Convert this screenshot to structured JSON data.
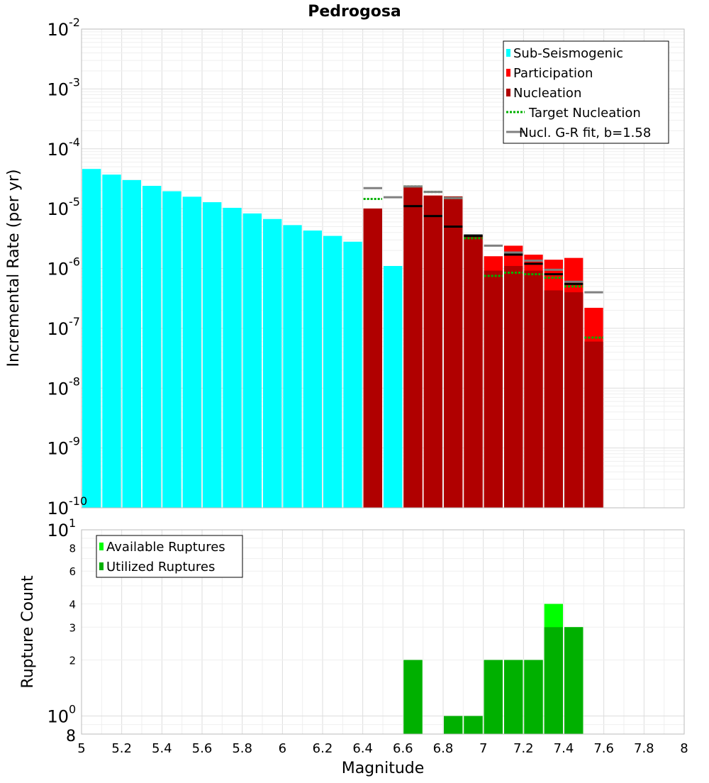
{
  "title": "Pedrogosa",
  "xlabel": "Magnitude",
  "chart_data": [
    {
      "type": "bar",
      "panel": "rates",
      "title": "Pedrogosa",
      "ylabel": "Incremental Rate (per yr)",
      "yscale": "log",
      "ylim": [
        1e-10,
        0.01
      ],
      "xlim": [
        5,
        8
      ],
      "grid": true,
      "legend_position": "top-right",
      "bin_width": 0.1,
      "x_ticks": [
        "5",
        "5.2",
        "5.4",
        "5.6",
        "5.8",
        "6",
        "6.2",
        "6.4",
        "6.6",
        "6.8",
        "7",
        "7.2",
        "7.4",
        "7.6",
        "7.8",
        "8"
      ],
      "y_ticks": [
        {
          "base": "10",
          "exp": "-2"
        },
        {
          "base": "10",
          "exp": "-3"
        },
        {
          "base": "10",
          "exp": "-4"
        },
        {
          "base": "10",
          "exp": "-5"
        },
        {
          "base": "10",
          "exp": "-6"
        },
        {
          "base": "10",
          "exp": "-7"
        },
        {
          "base": "10",
          "exp": "-8"
        },
        {
          "base": "10",
          "exp": "-9"
        },
        {
          "base": "10",
          "exp": "-10"
        }
      ],
      "legend": [
        {
          "label": "Sub-Seismogenic",
          "kind": "box",
          "color": "#00ffff"
        },
        {
          "label": "Participation",
          "kind": "box",
          "color": "#ff0000"
        },
        {
          "label": "Nucleation",
          "kind": "box",
          "color": "#b00000"
        },
        {
          "label": "Target Nucleation",
          "kind": "dotted",
          "color": "#00b000"
        },
        {
          "label": "Nucl. G-R fit, b=1.58",
          "kind": "line",
          "color": "#808080"
        }
      ],
      "series": [
        {
          "name": "Sub-Seismogenic",
          "color": "#00ffff",
          "style": "bar",
          "points": [
            [
              5.05,
              4.6e-05
            ],
            [
              5.15,
              3.7e-05
            ],
            [
              5.25,
              3e-05
            ],
            [
              5.35,
              2.4e-05
            ],
            [
              5.45,
              1.95e-05
            ],
            [
              5.55,
              1.58e-05
            ],
            [
              5.65,
              1.28e-05
            ],
            [
              5.75,
              1.03e-05
            ],
            [
              5.85,
              8.3e-06
            ],
            [
              5.95,
              6.7e-06
            ],
            [
              6.05,
              5.3e-06
            ],
            [
              6.15,
              4.3e-06
            ],
            [
              6.25,
              3.5e-06
            ],
            [
              6.35,
              2.8e-06
            ],
            [
              6.55,
              1.1e-06
            ]
          ]
        },
        {
          "name": "Participation",
          "color": "#ff0000",
          "style": "bar",
          "points": [
            [
              6.45,
              1e-05
            ],
            [
              6.65,
              2.3e-05
            ],
            [
              6.75,
              1.65e-05
            ],
            [
              6.85,
              1.6e-05
            ],
            [
              6.95,
              3.6e-06
            ],
            [
              7.05,
              1.6e-06
            ],
            [
              7.15,
              2.4e-06
            ],
            [
              7.25,
              1.7e-06
            ],
            [
              7.35,
              1.4e-06
            ],
            [
              7.45,
              1.5e-06
            ],
            [
              7.55,
              2.2e-07
            ]
          ]
        },
        {
          "name": "Nucleation",
          "color": "#b00000",
          "style": "bar",
          "points": [
            [
              6.45,
              1e-05
            ],
            [
              6.65,
              2.3e-05
            ],
            [
              6.75,
              1.65e-05
            ],
            [
              6.85,
              1.6e-05
            ],
            [
              6.95,
              3.6e-06
            ],
            [
              7.05,
              9.2e-07
            ],
            [
              7.15,
              1.1e-06
            ],
            [
              7.25,
              9.2e-07
            ],
            [
              7.35,
              4.3e-07
            ],
            [
              7.45,
              4e-07
            ],
            [
              7.55,
              6e-08
            ]
          ]
        },
        {
          "name": "Target Nucleation",
          "color": "#00b000",
          "style": "dotted-step",
          "points": [
            [
              6.45,
              1.45e-05
            ],
            [
              6.65,
              2.35e-05
            ],
            [
              6.75,
              1.9e-05
            ],
            [
              6.85,
              1.5e-05
            ],
            [
              6.95,
              3.2e-06
            ],
            [
              7.05,
              7.5e-07
            ],
            [
              7.15,
              8.5e-07
            ],
            [
              7.25,
              8e-07
            ],
            [
              7.35,
              7e-07
            ],
            [
              7.45,
              5e-07
            ],
            [
              7.55,
              7e-08
            ]
          ]
        },
        {
          "name": "Nucl. G-R fit, b=1.58",
          "color": "#808080",
          "style": "step",
          "points": [
            [
              6.45,
              2.2e-05
            ],
            [
              6.55,
              1.55e-05
            ],
            [
              6.65,
              2.35e-05
            ],
            [
              6.75,
              1.9e-05
            ],
            [
              6.85,
              1.5e-05
            ],
            [
              6.95,
              3.6e-06
            ],
            [
              7.05,
              2.4e-06
            ],
            [
              7.15,
              1.85e-06
            ],
            [
              7.25,
              1.35e-06
            ],
            [
              7.35,
              9.5e-07
            ],
            [
              7.45,
              6e-07
            ],
            [
              7.55,
              4e-07
            ]
          ]
        },
        {
          "name": "",
          "color": "#000000",
          "style": "step",
          "points": [
            [
              6.65,
              1.1e-05
            ],
            [
              6.75,
              7.5e-06
            ],
            [
              6.85,
              5e-06
            ],
            [
              6.95,
              3.5e-06
            ],
            [
              7.15,
              1.7e-06
            ],
            [
              7.25,
              1.2e-06
            ],
            [
              7.35,
              8e-07
            ],
            [
              7.45,
              5.5e-07
            ]
          ]
        }
      ]
    },
    {
      "type": "bar",
      "panel": "counts",
      "ylabel": "Rupture Count",
      "yscale": "log",
      "ylim": [
        0.8,
        10
      ],
      "xlim": [
        5,
        8
      ],
      "grid": true,
      "legend_position": "top-left",
      "bin_width": 0.1,
      "x_ticks": [
        "5",
        "5.2",
        "5.4",
        "5.6",
        "5.8",
        "6",
        "6.2",
        "6.4",
        "6.6",
        "6.8",
        "7",
        "7.2",
        "7.4",
        "7.6",
        "7.8",
        "8"
      ],
      "y_ticks": [
        {
          "v": 10,
          "base": "10",
          "exp": "1",
          "major": true
        },
        {
          "v": 8,
          "label": "8",
          "major": false
        },
        {
          "v": 6,
          "label": "6",
          "major": false
        },
        {
          "v": 4,
          "label": "4",
          "major": false
        },
        {
          "v": 3,
          "label": "3",
          "major": false
        },
        {
          "v": 2,
          "label": "2",
          "major": false
        },
        {
          "v": 1,
          "base": "10",
          "exp": "0",
          "major": true
        },
        {
          "v": 0.8,
          "label": "8",
          "major": true
        }
      ],
      "legend": [
        {
          "label": "Available Ruptures",
          "kind": "box",
          "color": "#00ff00"
        },
        {
          "label": "Utilized Ruptures",
          "kind": "box",
          "color": "#00b000"
        }
      ],
      "series": [
        {
          "name": "Available Ruptures",
          "color": "#00ff00",
          "style": "bar",
          "points": [
            [
              6.65,
              2
            ],
            [
              6.85,
              1
            ],
            [
              6.95,
              1
            ],
            [
              7.05,
              2
            ],
            [
              7.15,
              2
            ],
            [
              7.25,
              2
            ],
            [
              7.35,
              4
            ],
            [
              7.45,
              3
            ]
          ]
        },
        {
          "name": "Utilized Ruptures",
          "color": "#00b000",
          "style": "bar",
          "points": [
            [
              6.65,
              2
            ],
            [
              6.85,
              1
            ],
            [
              6.95,
              1
            ],
            [
              7.05,
              2
            ],
            [
              7.15,
              2
            ],
            [
              7.25,
              2
            ],
            [
              7.35,
              3
            ],
            [
              7.45,
              3
            ]
          ]
        }
      ]
    }
  ]
}
